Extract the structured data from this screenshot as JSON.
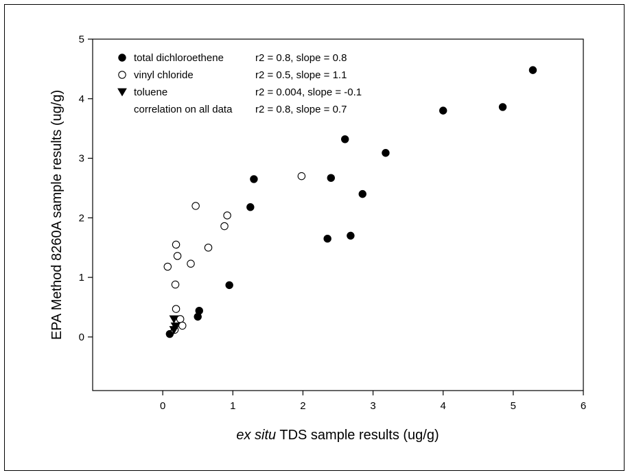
{
  "chart_data": {
    "type": "scatter",
    "xlabel_prefix": "ex situ",
    "xlabel_rest": " TDS sample results (ug/g)",
    "ylabel": "EPA Method 8260A sample results (ug/g)",
    "xlim": [
      -1,
      6
    ],
    "ylim": [
      -0.9,
      5
    ],
    "xticks": [
      0,
      1,
      2,
      3,
      4,
      5,
      6
    ],
    "yticks": [
      0,
      1,
      2,
      3,
      4,
      5
    ],
    "grid": false,
    "legend_position": "top-left",
    "series": [
      {
        "name": "total dichloroethene",
        "stats": "r2 = 0.8, slope = 0.8",
        "marker": "filled-circle",
        "points": [
          [
            0.1,
            0.05
          ],
          [
            0.5,
            0.34
          ],
          [
            0.52,
            0.44
          ],
          [
            0.95,
            0.87
          ],
          [
            1.25,
            2.18
          ],
          [
            1.3,
            2.65
          ],
          [
            2.35,
            1.65
          ],
          [
            2.4,
            2.67
          ],
          [
            2.6,
            3.32
          ],
          [
            2.68,
            1.7
          ],
          [
            2.85,
            2.4
          ],
          [
            3.18,
            3.09
          ],
          [
            4.0,
            3.8
          ],
          [
            4.85,
            3.86
          ],
          [
            5.28,
            4.48
          ]
        ]
      },
      {
        "name": "vinyl chloride",
        "stats": "r2 = 0.5, slope = 1.1",
        "marker": "open-circle",
        "points": [
          [
            0.07,
            1.18
          ],
          [
            0.18,
            0.88
          ],
          [
            0.19,
            1.55
          ],
          [
            0.21,
            1.36
          ],
          [
            0.19,
            0.47
          ],
          [
            0.17,
            0.12
          ],
          [
            0.25,
            0.3
          ],
          [
            0.28,
            0.19
          ],
          [
            0.4,
            1.23
          ],
          [
            0.47,
            2.2
          ],
          [
            0.65,
            1.5
          ],
          [
            0.88,
            1.86
          ],
          [
            0.92,
            2.04
          ],
          [
            1.98,
            2.7
          ]
        ]
      },
      {
        "name": "toluene",
        "stats": "r2 = 0.004, slope = -0.1",
        "marker": "filled-triangle-down",
        "points": [
          [
            0.16,
            0.3
          ],
          [
            0.18,
            0.18
          ],
          [
            0.16,
            0.12
          ]
        ]
      }
    ],
    "legend_extra": {
      "label": "correlation on all data",
      "stats": "r2 = 0.8, slope = 0.7"
    }
  }
}
